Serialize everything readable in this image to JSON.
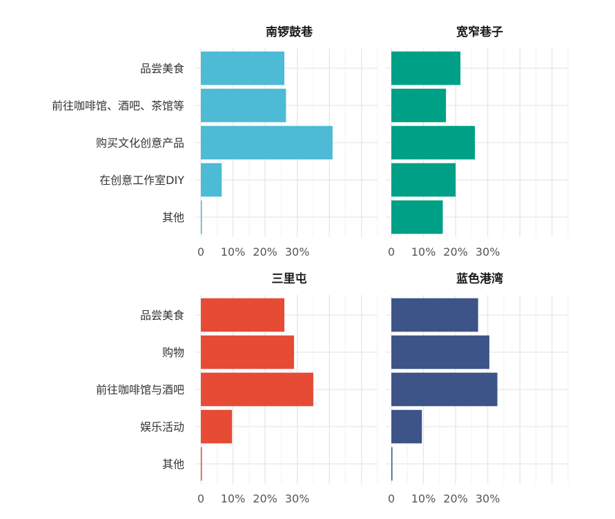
{
  "chart_data": [
    {
      "type": "bar",
      "orientation": "horizontal",
      "title": "南锣鼓巷",
      "color": "#4DBBD5",
      "categories": [
        "品尝美食",
        "前往咖啡馆、酒吧、茶馆等",
        "购买文化创意产品",
        "在创意工作室DIY",
        "其他"
      ],
      "values": [
        0.26,
        0.265,
        0.41,
        0.065,
        0.003
      ],
      "xlim": [
        0,
        0.55
      ],
      "xticks": [
        0,
        0.1,
        0.2,
        0.3
      ],
      "xtick_labels": [
        "0",
        "10%",
        "20%",
        "30%"
      ],
      "grid": true
    },
    {
      "type": "bar",
      "orientation": "horizontal",
      "title": "宽窄巷子",
      "color": "#00A087",
      "categories": [
        "品尝美食",
        "前往咖啡馆、酒吧、茶馆等",
        "购买文化创意产品",
        "在创意工作室DIY",
        "其他"
      ],
      "values": [
        0.215,
        0.17,
        0.26,
        0.2,
        0.16
      ],
      "xlim": [
        0,
        0.55
      ],
      "xticks": [
        0,
        0.1,
        0.2,
        0.3
      ],
      "xtick_labels": [
        "0",
        "10%",
        "20%",
        "30%"
      ],
      "grid": true
    },
    {
      "type": "bar",
      "orientation": "horizontal",
      "title": "三里屯",
      "color": "#E64B35",
      "categories": [
        "品尝美食",
        "购物",
        "前往咖啡馆与酒吧",
        "娱乐活动",
        "其他"
      ],
      "values": [
        0.26,
        0.29,
        0.35,
        0.097,
        0.003
      ],
      "xlim": [
        0,
        0.55
      ],
      "xticks": [
        0,
        0.1,
        0.2,
        0.3
      ],
      "xtick_labels": [
        "0",
        "10%",
        "20%",
        "30%"
      ],
      "grid": true
    },
    {
      "type": "bar",
      "orientation": "horizontal",
      "title": "蓝色港湾",
      "color": "#3C5488",
      "categories": [
        "品尝美食",
        "购物",
        "前往咖啡馆与酒吧",
        "娱乐活动",
        "其他"
      ],
      "values": [
        0.27,
        0.305,
        0.33,
        0.095,
        0.003
      ],
      "xlim": [
        0,
        0.55
      ],
      "xticks": [
        0,
        0.1,
        0.2,
        0.3
      ],
      "xtick_labels": [
        "0",
        "10%",
        "20%",
        "30%"
      ],
      "grid": true
    }
  ]
}
